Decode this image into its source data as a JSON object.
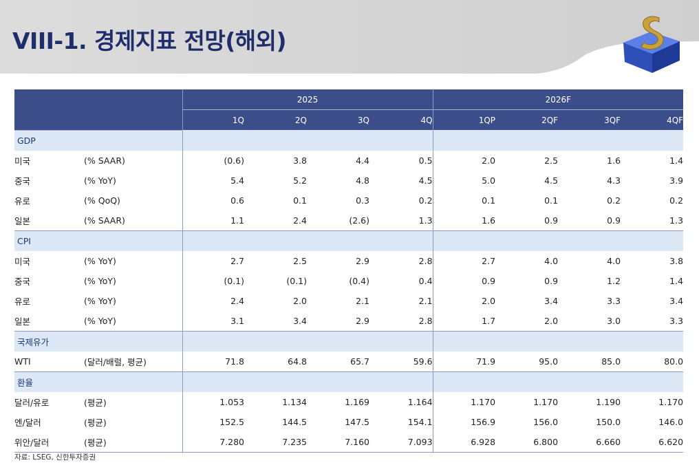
{
  "title": "VIII-1. 경제지표 전망(해외)",
  "columns": {
    "year_groups": [
      "2025",
      "2026F"
    ],
    "quarters": [
      "1Q",
      "2Q",
      "3Q",
      "4Q",
      "1QP",
      "2QF",
      "3QF",
      "4QF"
    ]
  },
  "sections": [
    {
      "label": "GDP",
      "rows": [
        {
          "name": "미국",
          "unit": "(% SAAR)",
          "values": [
            "(0.6)",
            "3.8",
            "4.4",
            "0.5",
            "2.0",
            "2.5",
            "1.6",
            "1.4"
          ]
        },
        {
          "name": "중국",
          "unit": "(% YoY)",
          "values": [
            "5.4",
            "5.2",
            "4.8",
            "4.5",
            "5.0",
            "4.5",
            "4.3",
            "3.9"
          ]
        },
        {
          "name": "유로",
          "unit": "(% QoQ)",
          "values": [
            "0.6",
            "0.1",
            "0.3",
            "0.2",
            "0.1",
            "0.1",
            "0.2",
            "0.2"
          ]
        },
        {
          "name": "일본",
          "unit": "(% SAAR)",
          "values": [
            "1.1",
            "2.4",
            "(2.6)",
            "1.3",
            "1.6",
            "0.9",
            "0.9",
            "1.3"
          ]
        }
      ]
    },
    {
      "label": "CPI",
      "rows": [
        {
          "name": "미국",
          "unit": "(% YoY)",
          "values": [
            "2.7",
            "2.5",
            "2.9",
            "2.8",
            "2.7",
            "4.0",
            "4.0",
            "3.8"
          ]
        },
        {
          "name": "중국",
          "unit": "(% YoY)",
          "values": [
            "(0.1)",
            "(0.1)",
            "(0.4)",
            "0.4",
            "0.9",
            "0.9",
            "1.2",
            "1.4"
          ]
        },
        {
          "name": "유로",
          "unit": "(% YoY)",
          "values": [
            "2.4",
            "2.0",
            "2.1",
            "2.1",
            "2.0",
            "3.4",
            "3.3",
            "3.4"
          ]
        },
        {
          "name": "일본",
          "unit": "(% YoY)",
          "values": [
            "3.1",
            "3.4",
            "2.9",
            "2.8",
            "1.7",
            "2.0",
            "3.0",
            "3.3"
          ]
        }
      ]
    },
    {
      "label": "국제유가",
      "rows": [
        {
          "name": "WTI",
          "unit": "(달러/배럴, 평균)",
          "values": [
            "71.8",
            "64.8",
            "65.7",
            "59.6",
            "71.9",
            "95.0",
            "85.0",
            "80.0"
          ]
        }
      ]
    },
    {
      "label": "환율",
      "rows": [
        {
          "name": "달러/유로",
          "unit": "(평균)",
          "values": [
            "1.053",
            "1.134",
            "1.169",
            "1.164",
            "1.170",
            "1.170",
            "1.190",
            "1.170"
          ]
        },
        {
          "name": "엔/달러",
          "unit": "(평균)",
          "values": [
            "152.5",
            "144.5",
            "147.5",
            "154.1",
            "156.9",
            "156.0",
            "150.0",
            "146.0"
          ]
        },
        {
          "name": "위안/달러",
          "unit": "(평균)",
          "values": [
            "7.280",
            "7.235",
            "7.160",
            "7.093",
            "6.928",
            "6.800",
            "6.660",
            "6.620"
          ]
        }
      ]
    }
  ],
  "source": "자료: LSEG, 신한투자증권",
  "colors": {
    "header_bg": "#3c4e8a",
    "section_bg": "#dce8f5",
    "title": "#1f2d6b",
    "banner": "#d9d9d9"
  },
  "logo": {
    "icon": "shinhan-s-cube-logo"
  }
}
